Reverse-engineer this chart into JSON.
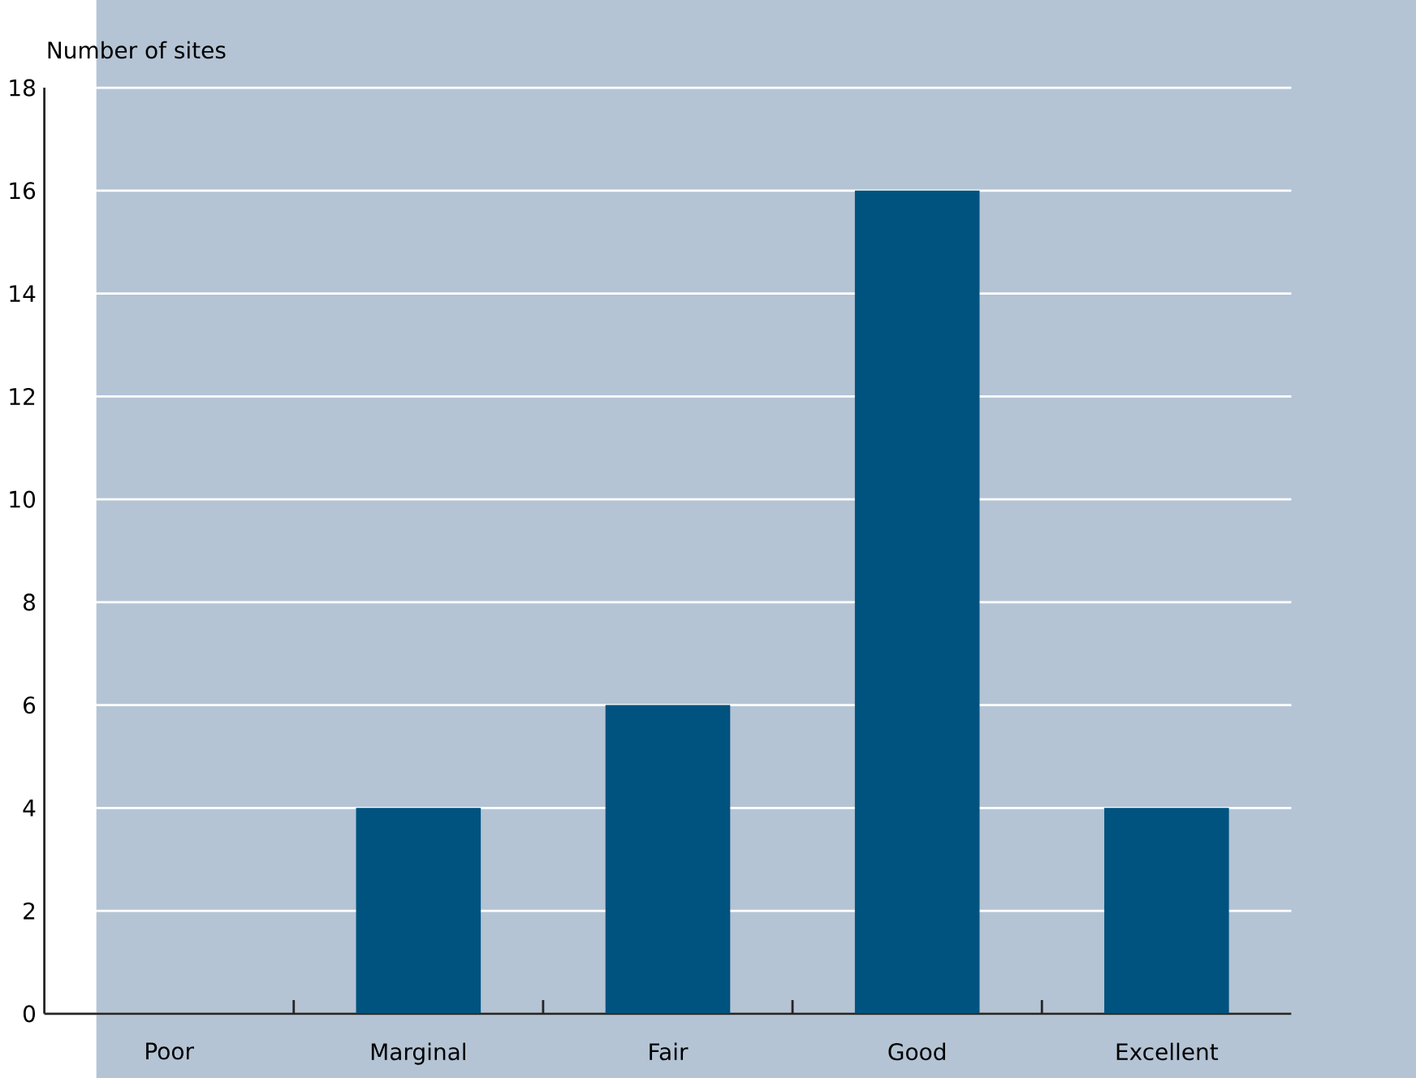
{
  "chart_data": {
    "type": "bar",
    "ylabel": "Number of sites",
    "categories": [
      "Poor",
      "Marginal",
      "Fair",
      "Good",
      "Excellent"
    ],
    "values": [
      0,
      4,
      6,
      16,
      4
    ],
    "color": "#00527f",
    "ylim": [
      0,
      18
    ],
    "yticks": [
      0,
      2,
      4,
      6,
      8,
      10,
      12,
      14,
      16,
      18
    ],
    "grid": "y"
  }
}
